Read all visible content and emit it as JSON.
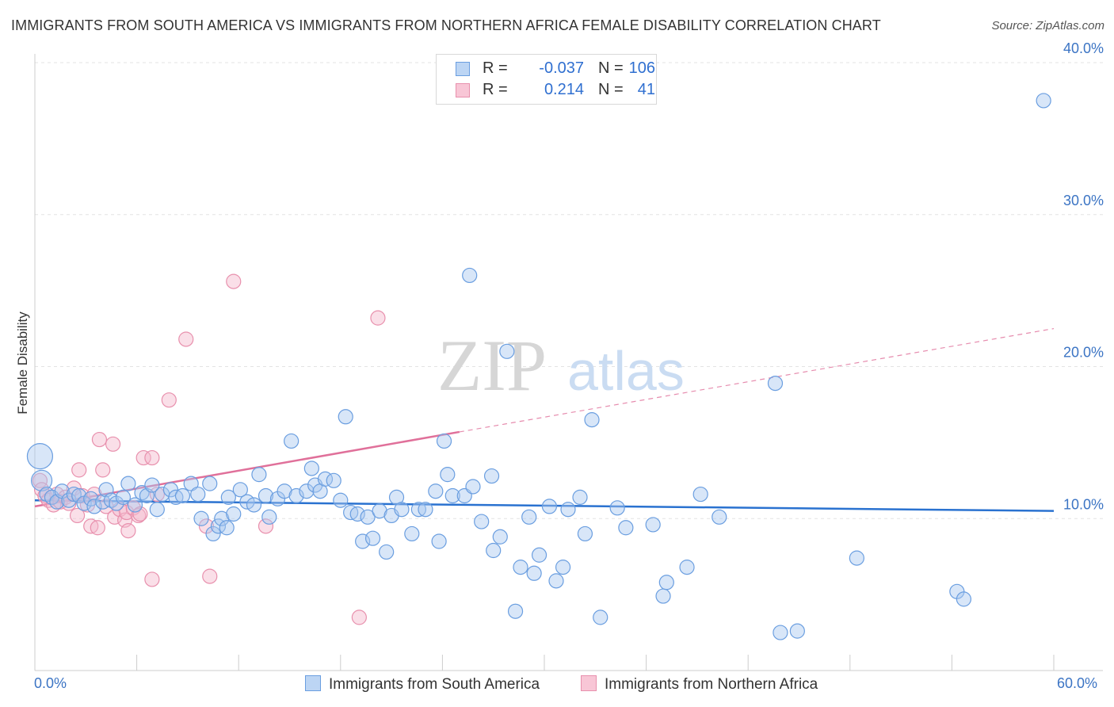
{
  "title": "IMMIGRANTS FROM SOUTH AMERICA VS IMMIGRANTS FROM NORTHERN AFRICA FEMALE DISABILITY CORRELATION CHART",
  "source": "Source: ZipAtlas.com",
  "watermark": {
    "zip": "ZIP",
    "atlas": "atlas"
  },
  "legend": {
    "rows": [
      {
        "r_label": "R =",
        "r_value": "-0.037",
        "n_label": "N =",
        "n_value": "106"
      },
      {
        "r_label": "R =",
        "r_value": "0.214",
        "n_label": "N =",
        "n_value": "41"
      }
    ]
  },
  "bottom_legend": [
    "Immigrants from South America",
    "Immigrants from Northern Africa"
  ],
  "colors": {
    "blue_fill": "#a9c8f0",
    "blue_stroke": "#6a9ee0",
    "blue_line": "#2a72d0",
    "pink_fill": "#f5b8cb",
    "pink_stroke": "#e890ad",
    "pink_line": "#e0709a",
    "grid": "#e3e3e3",
    "axis_text": "#3b74c4"
  },
  "chart_data": {
    "type": "scatter",
    "title": "IMMIGRANTS FROM SOUTH AMERICA VS IMMIGRANTS FROM NORTHERN AFRICA FEMALE DISABILITY CORRELATION CHART",
    "xlabel": "",
    "ylabel": "Female Disability",
    "xlim": [
      0,
      60
    ],
    "ylim": [
      0,
      41
    ],
    "x_tick_labels": [
      "0.0%",
      "60.0%"
    ],
    "y_ticks": [
      10,
      20,
      30,
      40
    ],
    "y_tick_labels": [
      "10.0%",
      "20.0%",
      "30.0%",
      "40.0%"
    ],
    "grid": "horizontal dashed",
    "legend_position": "top-center",
    "series": [
      {
        "name": "Immigrants from South America",
        "color": "#a9c8f0",
        "r": -0.037,
        "n": 106,
        "trend": {
          "x": [
            0,
            60
          ],
          "y": [
            11.2,
            10.5
          ]
        },
        "points": [
          [
            0.3,
            14.1
          ],
          [
            0.4,
            12.5
          ],
          [
            0.7,
            11.6
          ],
          [
            1.0,
            11.4
          ],
          [
            1.3,
            11.1
          ],
          [
            1.6,
            11.8
          ],
          [
            2.0,
            11.2
          ],
          [
            2.3,
            11.6
          ],
          [
            2.6,
            11.5
          ],
          [
            2.9,
            11.0
          ],
          [
            3.3,
            11.3
          ],
          [
            3.5,
            10.8
          ],
          [
            4.0,
            11.1
          ],
          [
            4.2,
            11.9
          ],
          [
            4.5,
            11.2
          ],
          [
            4.8,
            11.0
          ],
          [
            5.2,
            11.4
          ],
          [
            5.5,
            12.3
          ],
          [
            5.9,
            10.9
          ],
          [
            6.3,
            11.7
          ],
          [
            6.6,
            11.5
          ],
          [
            6.9,
            12.2
          ],
          [
            7.2,
            10.6
          ],
          [
            7.5,
            11.6
          ],
          [
            8.0,
            11.9
          ],
          [
            8.3,
            11.4
          ],
          [
            8.7,
            11.5
          ],
          [
            9.2,
            12.3
          ],
          [
            9.6,
            11.6
          ],
          [
            9.8,
            10.0
          ],
          [
            10.3,
            12.3
          ],
          [
            10.5,
            9.0
          ],
          [
            10.8,
            9.5
          ],
          [
            11.0,
            10.0
          ],
          [
            11.3,
            9.4
          ],
          [
            11.4,
            11.4
          ],
          [
            11.7,
            10.3
          ],
          [
            12.1,
            11.9
          ],
          [
            12.5,
            11.1
          ],
          [
            12.9,
            10.9
          ],
          [
            13.2,
            12.9
          ],
          [
            13.6,
            11.5
          ],
          [
            13.8,
            10.1
          ],
          [
            14.3,
            11.3
          ],
          [
            14.7,
            11.8
          ],
          [
            15.1,
            15.1
          ],
          [
            15.4,
            11.5
          ],
          [
            16.0,
            11.8
          ],
          [
            16.3,
            13.3
          ],
          [
            16.5,
            12.2
          ],
          [
            16.8,
            11.8
          ],
          [
            17.1,
            12.6
          ],
          [
            17.6,
            12.5
          ],
          [
            18.0,
            11.2
          ],
          [
            18.3,
            16.7
          ],
          [
            18.6,
            10.4
          ],
          [
            19.0,
            10.3
          ],
          [
            19.3,
            8.5
          ],
          [
            19.6,
            10.1
          ],
          [
            19.9,
            8.7
          ],
          [
            20.3,
            10.5
          ],
          [
            20.7,
            7.8
          ],
          [
            21.0,
            10.2
          ],
          [
            21.3,
            11.4
          ],
          [
            21.6,
            10.6
          ],
          [
            22.2,
            9.0
          ],
          [
            22.6,
            10.6
          ],
          [
            23.0,
            10.6
          ],
          [
            23.6,
            11.8
          ],
          [
            23.8,
            8.5
          ],
          [
            24.1,
            15.1
          ],
          [
            24.3,
            12.9
          ],
          [
            24.6,
            11.5
          ],
          [
            25.3,
            11.5
          ],
          [
            25.6,
            26.0
          ],
          [
            25.8,
            12.1
          ],
          [
            26.3,
            9.8
          ],
          [
            26.9,
            12.8
          ],
          [
            27.0,
            7.9
          ],
          [
            27.4,
            8.8
          ],
          [
            27.8,
            21.0
          ],
          [
            28.3,
            3.9
          ],
          [
            28.6,
            6.8
          ],
          [
            29.1,
            10.1
          ],
          [
            29.4,
            6.4
          ],
          [
            29.7,
            7.6
          ],
          [
            30.3,
            10.8
          ],
          [
            30.7,
            5.9
          ],
          [
            31.1,
            6.8
          ],
          [
            31.4,
            10.6
          ],
          [
            32.1,
            11.4
          ],
          [
            32.4,
            9.0
          ],
          [
            32.8,
            16.5
          ],
          [
            33.3,
            3.5
          ],
          [
            34.3,
            10.7
          ],
          [
            34.8,
            9.4
          ],
          [
            36.4,
            9.6
          ],
          [
            37.0,
            4.9
          ],
          [
            37.2,
            5.8
          ],
          [
            38.4,
            6.8
          ],
          [
            39.2,
            11.6
          ],
          [
            40.3,
            10.1
          ],
          [
            43.6,
            18.9
          ],
          [
            43.9,
            2.5
          ],
          [
            44.9,
            2.6
          ],
          [
            48.4,
            7.4
          ],
          [
            54.3,
            5.2
          ],
          [
            54.7,
            4.7
          ],
          [
            59.4,
            37.5
          ]
        ]
      },
      {
        "name": "Immigrants from Northern Africa",
        "color": "#f5b8cb",
        "r": 0.214,
        "n": 41,
        "trend_solid": {
          "x": [
            0,
            25
          ],
          "y": [
            10.8,
            15.7
          ]
        },
        "trend_dashed": {
          "x": [
            25,
            60
          ],
          "y": [
            15.7,
            22.5
          ]
        },
        "points": [
          [
            0.3,
            12.5
          ],
          [
            0.4,
            11.9
          ],
          [
            0.6,
            11.5
          ],
          [
            0.8,
            11.2
          ],
          [
            1.1,
            10.9
          ],
          [
            1.3,
            11.6
          ],
          [
            1.5,
            11.1
          ],
          [
            1.8,
            11.4
          ],
          [
            2.0,
            11.0
          ],
          [
            2.3,
            12.0
          ],
          [
            2.5,
            10.2
          ],
          [
            2.6,
            13.2
          ],
          [
            2.8,
            11.5
          ],
          [
            3.1,
            10.9
          ],
          [
            3.3,
            9.5
          ],
          [
            3.5,
            11.6
          ],
          [
            3.7,
            9.4
          ],
          [
            3.8,
            15.2
          ],
          [
            4.0,
            13.2
          ],
          [
            4.2,
            10.8
          ],
          [
            4.6,
            14.9
          ],
          [
            4.7,
            10.1
          ],
          [
            5.0,
            10.6
          ],
          [
            5.3,
            9.9
          ],
          [
            5.4,
            10.4
          ],
          [
            5.5,
            9.2
          ],
          [
            5.8,
            10.7
          ],
          [
            6.1,
            10.2
          ],
          [
            6.2,
            10.3
          ],
          [
            6.4,
            14.0
          ],
          [
            6.9,
            14.0
          ],
          [
            6.9,
            6.0
          ],
          [
            7.2,
            11.6
          ],
          [
            7.9,
            17.8
          ],
          [
            8.9,
            21.8
          ],
          [
            10.1,
            9.5
          ],
          [
            10.3,
            6.2
          ],
          [
            11.7,
            25.6
          ],
          [
            13.6,
            9.5
          ],
          [
            19.1,
            3.5
          ],
          [
            20.2,
            23.2
          ]
        ]
      }
    ]
  }
}
